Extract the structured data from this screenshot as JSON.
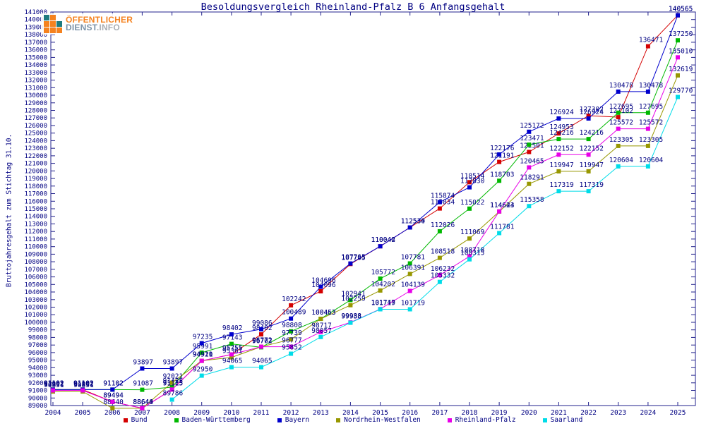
{
  "logo": {
    "line1": "ÖFFENTLICHER",
    "line2_part1": "DIENST",
    "line2_part2": ".INFO"
  },
  "chart_data": {
    "type": "line",
    "title": "Besoldungsvergleich Rheinland-Pfalz B 6 Anfangsgehalt",
    "ylabel": "Bruttojahresgehalt zum Stichtag 31.10.",
    "xlabel": "",
    "x": [
      2004,
      2005,
      2006,
      2007,
      2008,
      2009,
      2010,
      2011,
      2012,
      2013,
      2014,
      2015,
      2016,
      2017,
      2018,
      2019,
      2020,
      2021,
      2022,
      2023,
      2024,
      2025
    ],
    "ylim": [
      89000,
      141000
    ],
    "ytick_step": 1000,
    "grid": false,
    "legend_position": "bottom",
    "label_color": "#000082",
    "frame_color": "#22228c",
    "series": [
      {
        "name": "Bund",
        "color": "#d40000",
        "values": [
          91102,
          91102,
          89494,
          88644,
          91125,
          94911,
          95755,
          98402,
          102242,
          104096,
          107705,
          110042,
          112530,
          115034,
          118514,
          121191,
          122501,
          124953,
          127302,
          127102,
          136471,
          140565
        ]
      },
      {
        "name": "Baden-Württemberg",
        "color": "#00b800",
        "values": [
          91102,
          91102,
          91102,
          91087,
          91425,
          95991,
          97143,
          96702,
          98808,
          100453,
          102941,
          105772,
          107781,
          112026,
          115022,
          118703,
          123471,
          124216,
          124216,
          127695,
          127695,
          137250
        ]
      },
      {
        "name": "Bayern",
        "color": "#0000cd",
        "values": [
          91102,
          91102,
          91102,
          93897,
          93897,
          97235,
          98402,
          99086,
          100489,
          104696,
          107765,
          110044,
          112534,
          115874,
          117830,
          122176,
          125172,
          126924,
          126924,
          130478,
          130478,
          140565
        ]
      },
      {
        "name": "Nordrhein-Westfalen",
        "color": "#979700",
        "values": [
          90851,
          90851,
          88640,
          88640,
          92021,
          94920,
          95361,
          96772,
          97739,
          100463,
          102259,
          104202,
          106391,
          108518,
          111069,
          114623,
          118291,
          119947,
          119947,
          123305,
          123305,
          132619
        ]
      },
      {
        "name": "Rheinland-Pfalz",
        "color": "#e800e8",
        "values": [
          91002,
          91002,
          89494,
          88644,
          91115,
          94911,
          95755,
          96772,
          96777,
          98717,
          99988,
          101747,
          104139,
          106232,
          108718,
          114644,
          120465,
          122152,
          122152,
          125572,
          125572,
          135010
        ]
      },
      {
        "name": "Saarland",
        "color": "#00dce8",
        "values": [
          null,
          null,
          null,
          null,
          89786,
          92950,
          94065,
          94065,
          95852,
          98057,
          99938,
          101719,
          101719,
          105332,
          108315,
          111781,
          115358,
          117319,
          117319,
          120604,
          120604,
          129770
        ]
      }
    ]
  }
}
